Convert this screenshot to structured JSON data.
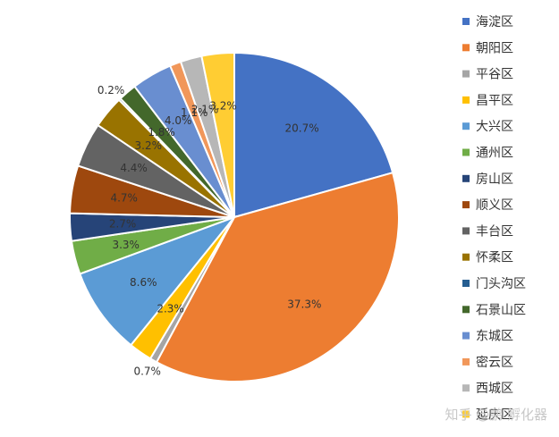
{
  "chart_data": {
    "type": "pie",
    "categories": [
      "海淀区",
      "朝阳区",
      "平谷区",
      "昌平区",
      "大兴区",
      "通州区",
      "房山区",
      "顺义区",
      "丰台区",
      "怀柔区",
      "门头沟区",
      "石景山区",
      "东城区",
      "密云区",
      "西城区",
      "延庆区"
    ],
    "values": [
      20.7,
      37.3,
      0.7,
      2.3,
      8.6,
      3.3,
      2.7,
      4.7,
      4.4,
      3.2,
      0.2,
      1.8,
      4.0,
      1.1,
      2.1,
      3.2
    ],
    "labels": [
      "20.7%",
      "37.3%",
      "0.7%",
      "2.3%",
      "8.6%",
      "3.3%",
      "2.7%",
      "4.7%",
      "4.4%",
      "3.2%",
      "0.2%",
      "1.8%",
      "4.0%",
      "1.1%",
      "2.1%",
      "3.2%"
    ],
    "colors": [
      "#4472C4",
      "#ED7D31",
      "#A5A5A5",
      "#FFC000",
      "#5B9BD5",
      "#70AD47",
      "#264478",
      "#9E480E",
      "#636363",
      "#997300",
      "#255E91",
      "#43682B",
      "#698ED0",
      "#F1975A",
      "#B7B7B7",
      "#FFCD33"
    ],
    "legend_position": "right",
    "start_angle_deg": 0,
    "direction": "clockwise"
  },
  "watermark": "知乎 @鹏 孵化器"
}
